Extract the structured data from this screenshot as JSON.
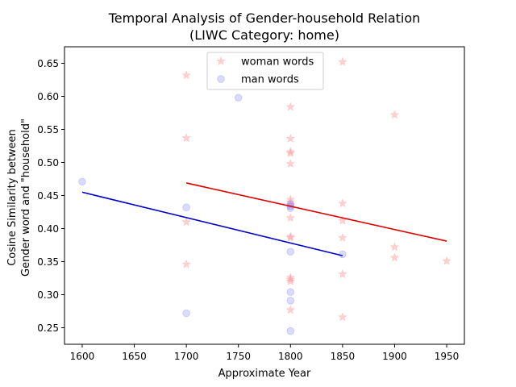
{
  "chart_data": {
    "type": "scatter",
    "title": "Temporal Analysis of Gender-household Relation",
    "subtitle": "(LIWC Category: home)",
    "xlabel": "Approximate Year",
    "ylabel_line1": "Cosine Similarity between",
    "ylabel_line2": "Gender word and \"household\"",
    "xlim": [
      1583,
      1967
    ],
    "ylim": [
      0.225,
      0.675
    ],
    "xticks": [
      1600,
      1650,
      1700,
      1750,
      1800,
      1850,
      1900,
      1950
    ],
    "xtick_labels": [
      "1600",
      "1650",
      "1700",
      "1750",
      "1800",
      "1850",
      "1900",
      "1950"
    ],
    "yticks": [
      0.25,
      0.3,
      0.35,
      0.4,
      0.45,
      0.5,
      0.55,
      0.6,
      0.65
    ],
    "ytick_labels": [
      "0.25",
      "0.30",
      "0.35",
      "0.40",
      "0.45",
      "0.50",
      "0.55",
      "0.60",
      "0.65"
    ],
    "legend_position": "top-center",
    "series": [
      {
        "name": "woman words",
        "marker": "star",
        "color": "#ff9999",
        "points": [
          [
            1700,
            0.632
          ],
          [
            1700,
            0.537
          ],
          [
            1700,
            0.41
          ],
          [
            1700,
            0.346
          ],
          [
            1800,
            0.584
          ],
          [
            1800,
            0.536
          ],
          [
            1800,
            0.516
          ],
          [
            1800,
            0.514
          ],
          [
            1800,
            0.498
          ],
          [
            1800,
            0.444
          ],
          [
            1800,
            0.44
          ],
          [
            1800,
            0.436
          ],
          [
            1800,
            0.434
          ],
          [
            1800,
            0.416
          ],
          [
            1800,
            0.388
          ],
          [
            1800,
            0.386
          ],
          [
            1800,
            0.326
          ],
          [
            1800,
            0.323
          ],
          [
            1800,
            0.32
          ],
          [
            1800,
            0.277
          ],
          [
            1850,
            0.652
          ],
          [
            1850,
            0.438
          ],
          [
            1850,
            0.412
          ],
          [
            1850,
            0.386
          ],
          [
            1850,
            0.331
          ],
          [
            1850,
            0.266
          ],
          [
            1900,
            0.572
          ],
          [
            1900,
            0.372
          ],
          [
            1900,
            0.356
          ],
          [
            1950,
            0.351
          ]
        ],
        "trend": [
          [
            1700,
            0.469
          ],
          [
            1950,
            0.381
          ]
        ],
        "trend_color": "#dd0000"
      },
      {
        "name": "man words",
        "marker": "circle",
        "color": "#9999ff",
        "points": [
          [
            1600,
            0.471
          ],
          [
            1700,
            0.432
          ],
          [
            1700,
            0.272
          ],
          [
            1750,
            0.598
          ],
          [
            1800,
            0.437
          ],
          [
            1800,
            0.434
          ],
          [
            1800,
            0.431
          ],
          [
            1800,
            0.365
          ],
          [
            1800,
            0.304
          ],
          [
            1800,
            0.291
          ],
          [
            1800,
            0.245
          ],
          [
            1850,
            0.361
          ]
        ],
        "trend": [
          [
            1600,
            0.455
          ],
          [
            1850,
            0.359
          ]
        ],
        "trend_color": "#0000cc"
      }
    ]
  }
}
